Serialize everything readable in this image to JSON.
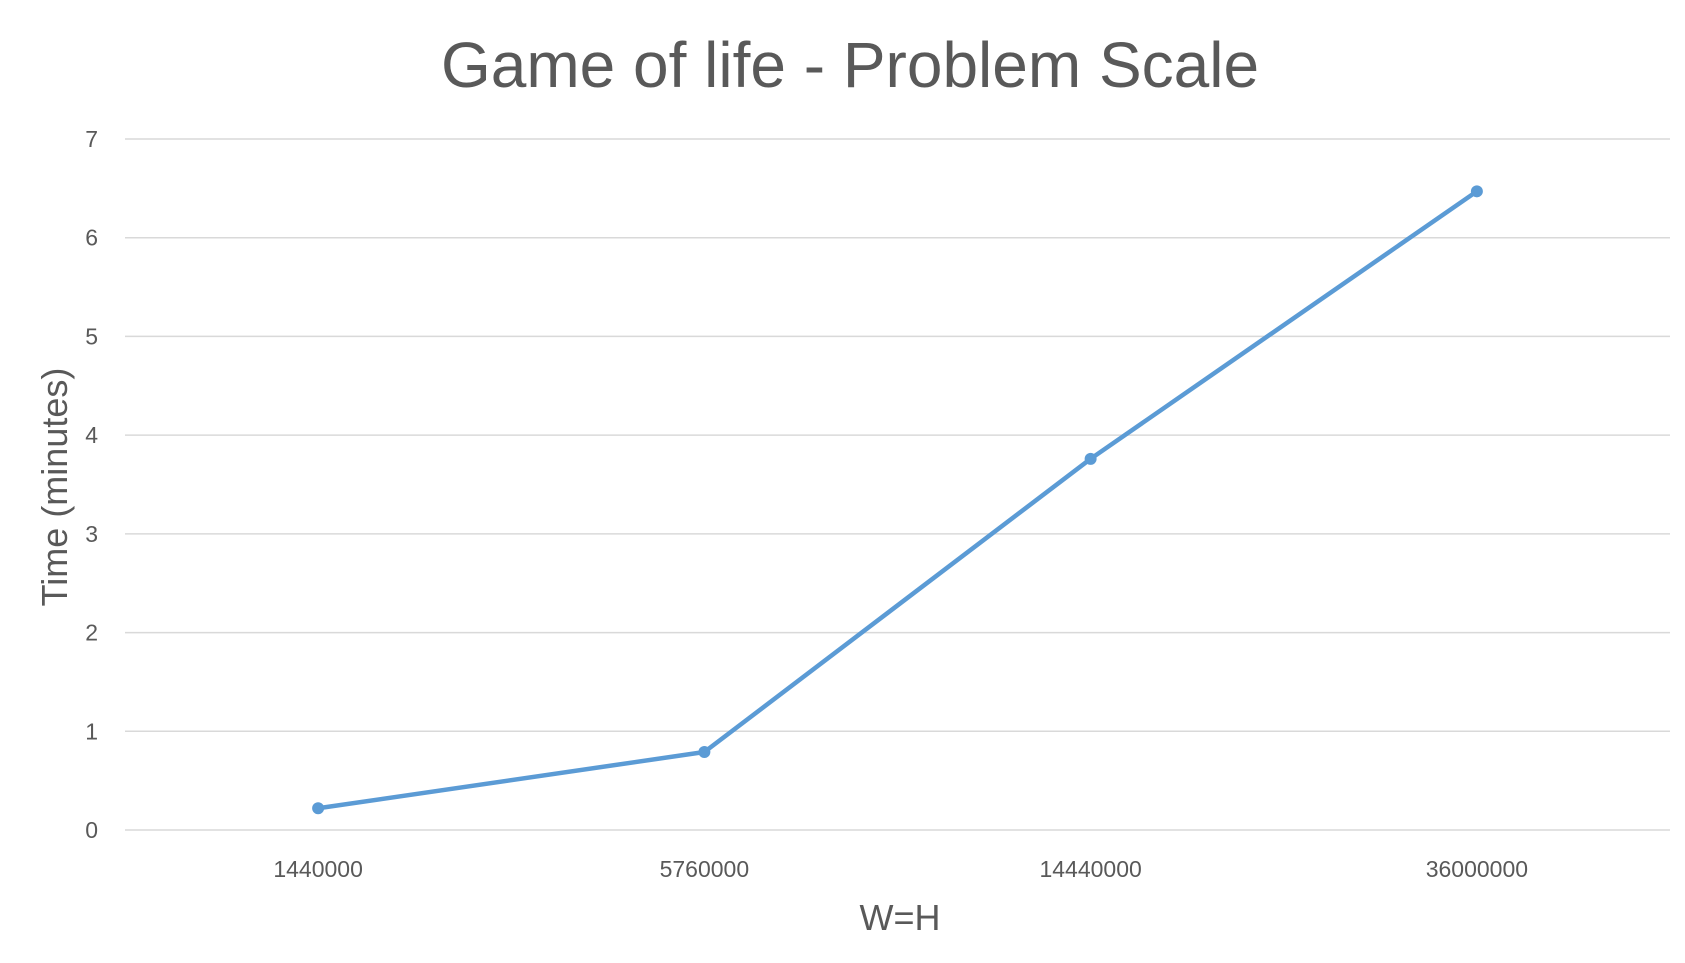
{
  "chart_data": {
    "type": "line",
    "title": "Game of life - Problem Scale",
    "xlabel": "W=H",
    "ylabel": "Time (minutes)",
    "categories": [
      "1440000",
      "5760000",
      "14440000",
      "36000000"
    ],
    "series": [
      {
        "values": [
          0.22,
          0.79,
          3.76,
          6.47
        ],
        "color": "#5b9bd5",
        "markers": true
      }
    ],
    "ylim": [
      0,
      7
    ],
    "yticks": [
      0,
      1,
      2,
      3,
      4,
      5,
      6,
      7
    ],
    "grid": true,
    "legend": "none"
  }
}
